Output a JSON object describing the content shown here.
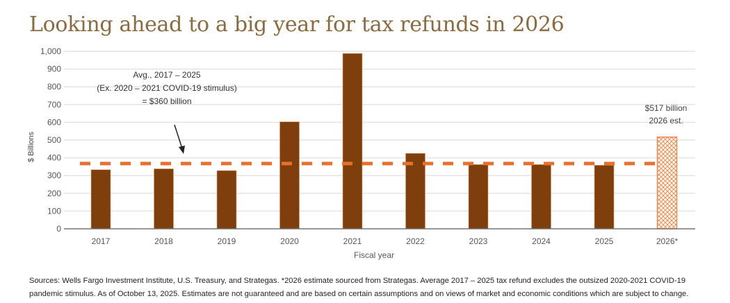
{
  "title": "Looking ahead to a big year for tax refunds in 2026",
  "chart_data": {
    "type": "bar",
    "categories": [
      "2017",
      "2018",
      "2019",
      "2020",
      "2021",
      "2022",
      "2023",
      "2024",
      "2025",
      "2026*"
    ],
    "values": [
      333,
      338,
      328,
      603,
      988,
      425,
      362,
      362,
      358,
      517
    ],
    "estimated": [
      false,
      false,
      false,
      false,
      false,
      false,
      false,
      false,
      false,
      true
    ],
    "xlabel": "Fiscal year",
    "ylabel": "$ Billions",
    "ylim": [
      0,
      1000
    ],
    "yticks": [
      0,
      100,
      200,
      300,
      400,
      500,
      600,
      700,
      800,
      900,
      1000
    ],
    "ytick_labels": [
      "0",
      "100",
      "200",
      "300",
      "400",
      "500",
      "600",
      "700",
      "800",
      "900",
      "1,000"
    ],
    "grid": true,
    "average_line": {
      "value": 360,
      "label_lines": [
        "Avg., 2017 – 2025",
        "(Ex. 2020 – 2021 COVID-19 stimulus)",
        "= $360 billion"
      ]
    },
    "estimate_label_lines": [
      "$517 billion",
      "2026 est."
    ],
    "colors": {
      "bar": "#7f3f0c",
      "estimate": "#f08a4b",
      "average": "#e8702e",
      "grid": "#e4e4e4",
      "axis": "#777777"
    }
  },
  "sources": [
    "Sources: Wells Fargo Investment Institute, U.S. Treasury, and Strategas. *2026 estimate sourced from Strategas. Average 2017 – 2025 tax refund excludes the outsized 2020-2021 COVID-19",
    "pandemic stimulus. As of October 13, 2025. Estimates are not guaranteed and are based on certain assumptions and on views of market and economic conditions which are subject to change."
  ]
}
